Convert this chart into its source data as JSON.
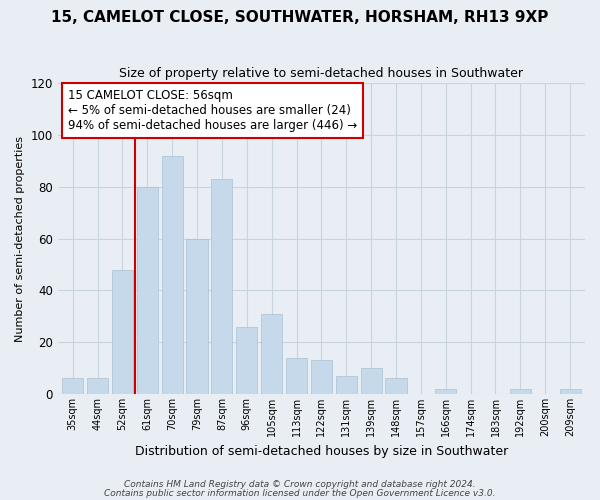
{
  "title": "15, CAMELOT CLOSE, SOUTHWATER, HORSHAM, RH13 9XP",
  "subtitle": "Size of property relative to semi-detached houses in Southwater",
  "xlabel": "Distribution of semi-detached houses by size in Southwater",
  "ylabel": "Number of semi-detached properties",
  "categories": [
    "35sqm",
    "44sqm",
    "52sqm",
    "61sqm",
    "70sqm",
    "79sqm",
    "87sqm",
    "96sqm",
    "105sqm",
    "113sqm",
    "122sqm",
    "131sqm",
    "139sqm",
    "148sqm",
    "157sqm",
    "166sqm",
    "174sqm",
    "183sqm",
    "192sqm",
    "200sqm",
    "209sqm"
  ],
  "values": [
    6,
    6,
    48,
    80,
    92,
    60,
    83,
    26,
    31,
    14,
    13,
    7,
    10,
    6,
    0,
    2,
    0,
    0,
    2,
    0,
    2
  ],
  "bar_color": "#c5d9ea",
  "red_line_color": "#cc0000",
  "red_line_index": 2,
  "annotation_title": "15 CAMELOT CLOSE: 56sqm",
  "annotation_line1": "← 5% of semi-detached houses are smaller (24)",
  "annotation_line2": "94% of semi-detached houses are larger (446) →",
  "annotation_box_facecolor": "#ffffff",
  "annotation_box_edgecolor": "#cc0000",
  "ylim": [
    0,
    120
  ],
  "yticks": [
    0,
    20,
    40,
    60,
    80,
    100,
    120
  ],
  "footer1": "Contains HM Land Registry data © Crown copyright and database right 2024.",
  "footer2": "Contains public sector information licensed under the Open Government Licence v3.0.",
  "bg_color": "#e8eef4",
  "plot_bg_color": "#e8eef4",
  "grid_color": "#c8d4de",
  "title_fontsize": 11,
  "subtitle_fontsize": 9,
  "ylabel_fontsize": 8,
  "xlabel_fontsize": 9,
  "annotation_fontsize": 8.5,
  "footer_fontsize": 6.5
}
